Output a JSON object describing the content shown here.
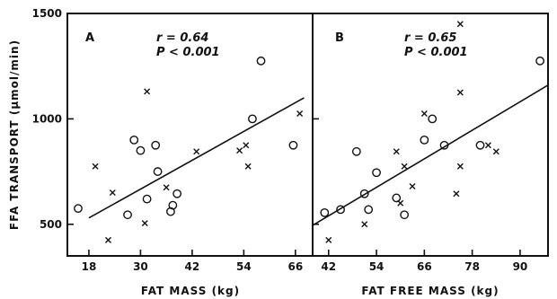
{
  "chart_data": [
    {
      "type": "scatter",
      "panel": "A",
      "annotation_r": "r = 0.64",
      "annotation_p": "P < 0.001",
      "xlabel": "FAT MASS (kg)",
      "ylabel": "FFA TRANSPORT (μmol/min)",
      "xlim": [
        13,
        70
      ],
      "ylim": [
        350,
        1500
      ],
      "xticks": [
        "18",
        "30",
        "42",
        "54",
        "66"
      ],
      "yticks": [
        "500",
        "1000",
        "1500"
      ],
      "regression": [
        [
          18,
          530
        ],
        [
          68,
          1100
        ]
      ],
      "series": [
        {
          "marker": "circle",
          "points": [
            [
              15.5,
              575
            ],
            [
              27,
              545
            ],
            [
              28.5,
              900
            ],
            [
              30,
              850
            ],
            [
              31.5,
              620
            ],
            [
              33.5,
              875
            ],
            [
              34,
              750
            ],
            [
              37,
              560
            ],
            [
              37.5,
              590
            ],
            [
              38.5,
              645
            ],
            [
              56,
              1000
            ],
            [
              58,
              1275
            ],
            [
              65.5,
              875
            ]
          ]
        },
        {
          "marker": "cross",
          "points": [
            [
              19.5,
              775
            ],
            [
              22.5,
              425
            ],
            [
              23.5,
              650
            ],
            [
              31,
              505
            ],
            [
              31.5,
              1130
            ],
            [
              36,
              675
            ],
            [
              43,
              845
            ],
            [
              53,
              850
            ],
            [
              54.5,
              875
            ],
            [
              55,
              775
            ],
            [
              67,
              1025
            ]
          ]
        }
      ]
    },
    {
      "type": "scatter",
      "panel": "B",
      "annotation_r": "r = 0.65",
      "annotation_p": "P < 0.001",
      "xlabel": "FAT FREE MASS (kg)",
      "ylabel": "",
      "xlim": [
        38,
        97
      ],
      "ylim": [
        350,
        1500
      ],
      "xticks": [
        "42",
        "54",
        "66",
        "78",
        "90"
      ],
      "yticks": [],
      "regression": [
        [
          38,
          495
        ],
        [
          97,
          1160
        ]
      ],
      "series": [
        {
          "marker": "circle",
          "points": [
            [
              41,
              555
            ],
            [
              45,
              570
            ],
            [
              49,
              845
            ],
            [
              51,
              645
            ],
            [
              52,
              570
            ],
            [
              54,
              745
            ],
            [
              59,
              625
            ],
            [
              61,
              545
            ],
            [
              66,
              900
            ],
            [
              68,
              1000
            ],
            [
              71,
              875
            ],
            [
              80,
              875
            ],
            [
              95,
              1275
            ]
          ]
        },
        {
          "marker": "cross",
          "points": [
            [
              42,
              425
            ],
            [
              51,
              500
            ],
            [
              59,
              845
            ],
            [
              60,
              600
            ],
            [
              61,
              775
            ],
            [
              63,
              680
            ],
            [
              66,
              1025
            ],
            [
              75,
              1450
            ],
            [
              75,
              1125
            ],
            [
              75,
              775
            ],
            [
              74,
              645
            ],
            [
              82,
              875
            ],
            [
              84,
              845
            ]
          ]
        }
      ]
    }
  ]
}
